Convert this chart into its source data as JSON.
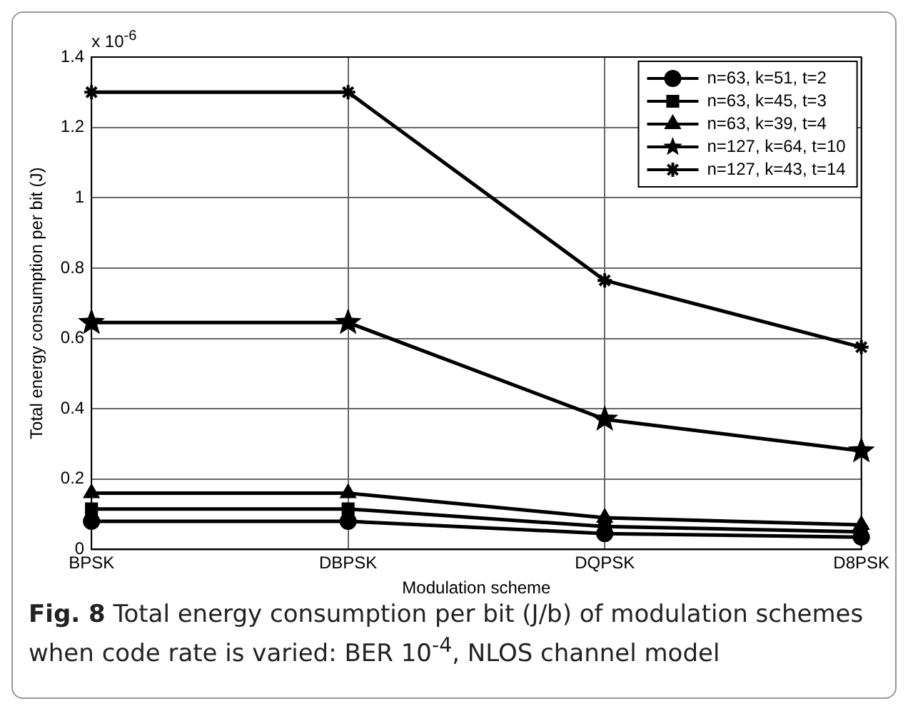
{
  "chart_data": {
    "type": "line",
    "xlabel": "Modulation scheme",
    "ylabel": "Total energy consumption per bit (J)",
    "categories": [
      "BPSK",
      "DBPSK",
      "DQPSK",
      "D8PSK"
    ],
    "series": [
      {
        "name": "n=63, k=51, t=2",
        "color": "#000000",
        "marker": "circle",
        "values": [
          0.08,
          0.08,
          0.045,
          0.035
        ]
      },
      {
        "name": "n=63, k=45, t=3",
        "color": "#000000",
        "marker": "square",
        "values": [
          0.115,
          0.115,
          0.065,
          0.05
        ]
      },
      {
        "name": "n=63, k=39, t=4",
        "color": "#000000",
        "marker": "triangle",
        "values": [
          0.16,
          0.16,
          0.09,
          0.07
        ]
      },
      {
        "name": "n=127, k=64, t=10",
        "color": "#000000",
        "marker": "star",
        "values": [
          0.645,
          0.645,
          0.37,
          0.28
        ]
      },
      {
        "name": "n=127, k=43, t=14",
        "color": "#000000",
        "marker": "cross",
        "values": [
          1.3,
          1.3,
          0.765,
          0.575
        ]
      }
    ],
    "ylim": [
      0,
      1.4
    ],
    "yticks": [
      0,
      0.2,
      0.4,
      0.6,
      0.8,
      1,
      1.2,
      1.4
    ],
    "grid": true,
    "legend": "top right",
    "line_style": "solid",
    "annotations": [
      "x 10$^{-6}$",
      "Fig. 8 Total energy consumption per bit (J/b) of modulation schemes when code rate is varied: BER 10$^{-4}$, NLOS channel model"
    ]
  }
}
